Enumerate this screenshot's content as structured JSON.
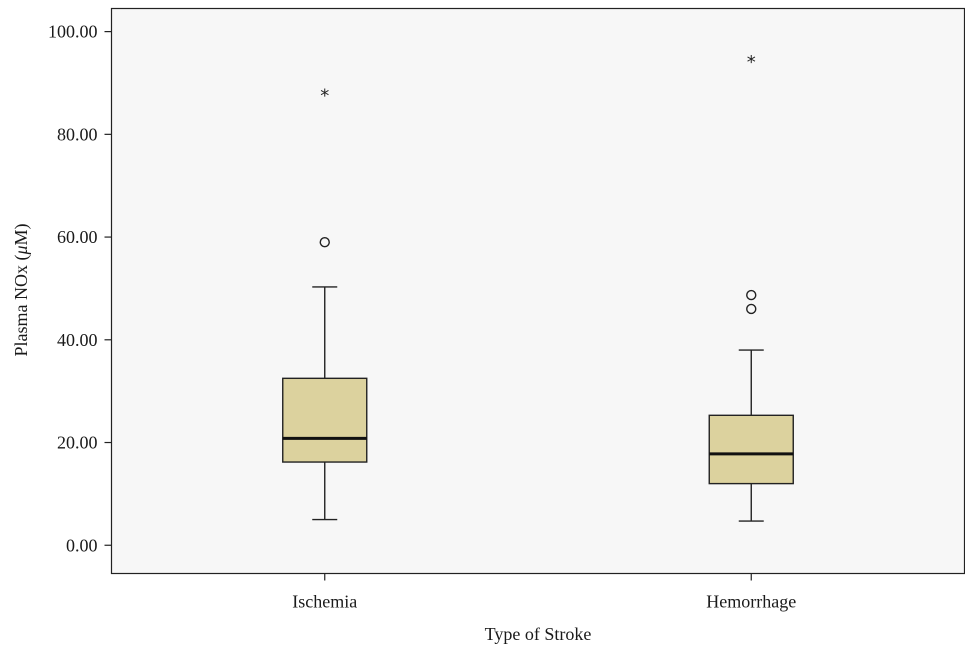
{
  "chart_data": {
    "type": "boxplot",
    "xlabel": "Type of Stroke",
    "ylabel_prefix": "Plasma NOx (",
    "ylabel_mu": "μ",
    "ylabel_suffix": "M)",
    "ylim": [
      -5.5,
      104.5
    ],
    "yticks": [
      0,
      20,
      40,
      60,
      80,
      100
    ],
    "ytick_labels": [
      "0.00",
      "20.00",
      "40.00",
      "60.00",
      "80.00",
      "100.00"
    ],
    "grid": false,
    "plot_background": "#f7f7f7",
    "box_color": "#dcd29e",
    "categories": [
      {
        "name": "Ischemia",
        "whisker_low": 5.0,
        "q1": 16.2,
        "median": 20.8,
        "q3": 32.5,
        "whisker_high": 50.3,
        "outliers_circle": [
          59.0
        ],
        "outliers_extreme": [
          88.0
        ]
      },
      {
        "name": "Hemorrhage",
        "whisker_low": 4.7,
        "q1": 12.0,
        "median": 17.8,
        "q3": 25.3,
        "whisker_high": 38.0,
        "outliers_circle": [
          46.0,
          48.7
        ],
        "outliers_extreme": [
          94.5
        ]
      }
    ],
    "extreme_marker": "*"
  }
}
